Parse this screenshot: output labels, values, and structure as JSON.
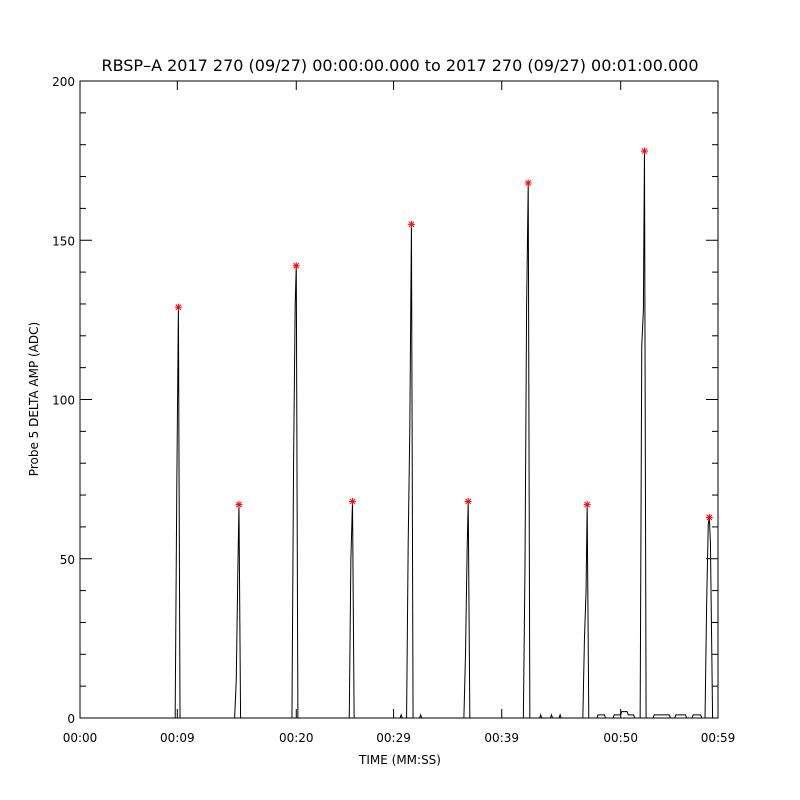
{
  "chart_data": {
    "type": "line",
    "title": "RBSP–A 2017 270 (09/27) 00:00:00.000 to 2017 270 (09/27) 00:01:00.000",
    "xlabel": "TIME (MM:SS)",
    "ylabel": "Probe 5 DELTA AMP (ADC)",
    "xlim": [
      0,
      59
    ],
    "ylim": [
      0,
      200
    ],
    "x_ticks": [
      0,
      9,
      20,
      29,
      39,
      50,
      59
    ],
    "x_tick_labels": [
      "00:00",
      "00:09",
      "00:20",
      "00:29",
      "00:39",
      "00:50",
      "00:59"
    ],
    "y_ticks": [
      0,
      50,
      100,
      150,
      200
    ],
    "y_tick_labels": [
      "0",
      "50",
      "100",
      "150",
      "200"
    ],
    "grid": false,
    "colors": {
      "line": "#000000",
      "marker": "#ff0000",
      "axes": "#000000"
    },
    "series": [
      {
        "values": [
          [
            0,
            0
          ],
          [
            8.8,
            0
          ],
          [
            8.95,
            72
          ],
          [
            9.1,
            129
          ],
          [
            9.25,
            0
          ],
          [
            14.3,
            0
          ],
          [
            14.45,
            12
          ],
          [
            14.6,
            47
          ],
          [
            14.7,
            67
          ],
          [
            14.85,
            0
          ],
          [
            19.6,
            0
          ],
          [
            19.75,
            80
          ],
          [
            19.9,
            130
          ],
          [
            20.0,
            142
          ],
          [
            20.15,
            0
          ],
          [
            24.9,
            0
          ],
          [
            25.05,
            50
          ],
          [
            25.2,
            68
          ],
          [
            25.35,
            0
          ],
          [
            29.6,
            0
          ],
          [
            29.7,
            1
          ],
          [
            29.8,
            0
          ],
          [
            30.2,
            0
          ],
          [
            30.35,
            55
          ],
          [
            30.5,
            91
          ],
          [
            30.65,
            155
          ],
          [
            30.8,
            0
          ],
          [
            31.4,
            0
          ],
          [
            31.5,
            1
          ],
          [
            31.6,
            0
          ],
          [
            35.5,
            0
          ],
          [
            35.65,
            20
          ],
          [
            35.8,
            53
          ],
          [
            35.9,
            68
          ],
          [
            36.05,
            0
          ],
          [
            41.0,
            0
          ],
          [
            41.15,
            47
          ],
          [
            41.3,
            129
          ],
          [
            41.45,
            168
          ],
          [
            41.6,
            0
          ],
          [
            42.5,
            0
          ],
          [
            42.6,
            1
          ],
          [
            42.7,
            0
          ],
          [
            43.5,
            0
          ],
          [
            43.6,
            1
          ],
          [
            43.7,
            0
          ],
          [
            44.3,
            0
          ],
          [
            44.4,
            1
          ],
          [
            44.5,
            0
          ],
          [
            46.5,
            0
          ],
          [
            46.65,
            25
          ],
          [
            46.8,
            40
          ],
          [
            46.9,
            67
          ],
          [
            47.05,
            0
          ],
          [
            47.8,
            0
          ],
          [
            47.9,
            1
          ],
          [
            48.5,
            1
          ],
          [
            48.6,
            0
          ],
          [
            49.3,
            0
          ],
          [
            49.4,
            1
          ],
          [
            50.0,
            1
          ],
          [
            50.1,
            2
          ],
          [
            50.6,
            2
          ],
          [
            50.7,
            1
          ],
          [
            51.2,
            1
          ],
          [
            51.3,
            0
          ],
          [
            51.8,
            0
          ],
          [
            51.95,
            117
          ],
          [
            52.1,
            128
          ],
          [
            52.2,
            178
          ],
          [
            52.35,
            0
          ],
          [
            53.0,
            0
          ],
          [
            53.1,
            1
          ],
          [
            54.5,
            1
          ],
          [
            54.6,
            0
          ],
          [
            55.0,
            0
          ],
          [
            55.1,
            1
          ],
          [
            56.0,
            1
          ],
          [
            56.1,
            0
          ],
          [
            56.6,
            0
          ],
          [
            56.7,
            1
          ],
          [
            57.4,
            1
          ],
          [
            57.5,
            0
          ],
          [
            57.8,
            0
          ],
          [
            57.95,
            36
          ],
          [
            58.1,
            61
          ],
          [
            58.2,
            63
          ],
          [
            58.3,
            55
          ],
          [
            58.5,
            0
          ]
        ]
      }
    ],
    "peaks": [
      {
        "x": 9.1,
        "y": 129
      },
      {
        "x": 14.7,
        "y": 67
      },
      {
        "x": 20.0,
        "y": 142
      },
      {
        "x": 25.2,
        "y": 68
      },
      {
        "x": 30.65,
        "y": 155
      },
      {
        "x": 35.9,
        "y": 68
      },
      {
        "x": 41.45,
        "y": 168
      },
      {
        "x": 46.9,
        "y": 67
      },
      {
        "x": 52.2,
        "y": 178
      },
      {
        "x": 58.2,
        "y": 63
      }
    ]
  }
}
